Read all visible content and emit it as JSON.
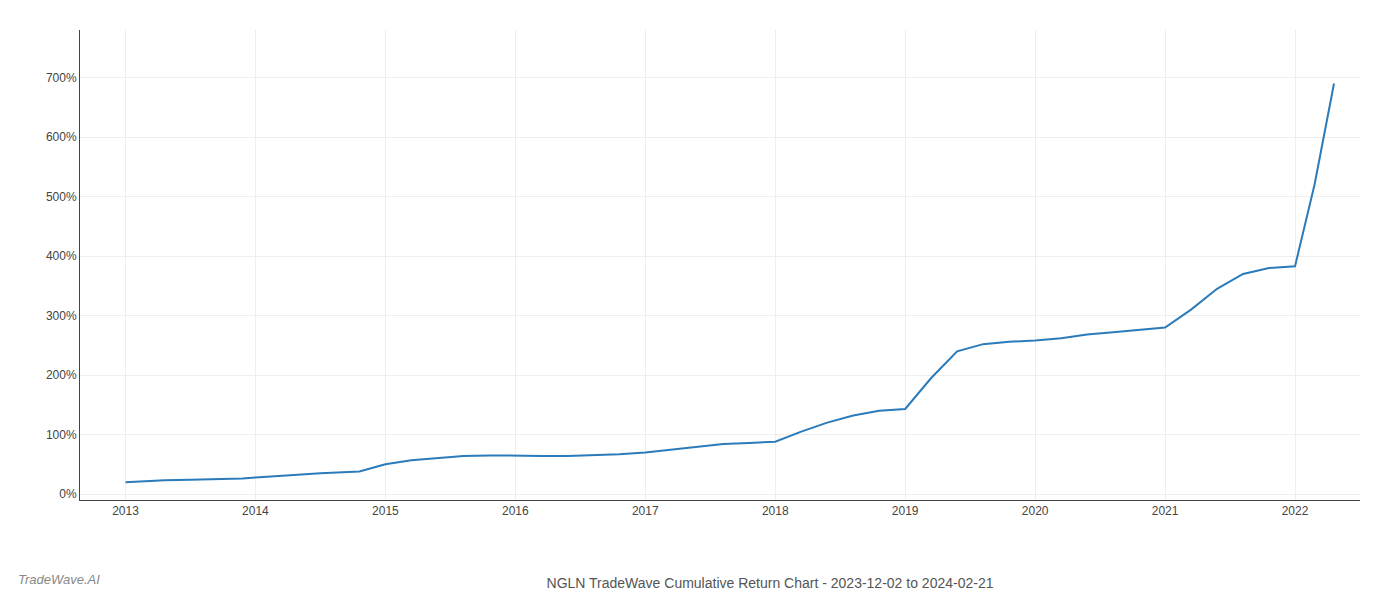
{
  "chart_data": {
    "type": "line",
    "title": "NGLN TradeWave Cumulative Return Chart - 2023-12-02 to 2024-02-21",
    "annotations": [
      {
        "text": "TradeWave.AI"
      }
    ],
    "color": "#2b7bba",
    "grid": true,
    "x": [
      2013.0,
      2013.15,
      2013.3,
      2013.5,
      2013.7,
      2013.9,
      2014.0,
      2014.2,
      2014.5,
      2014.8,
      2015.0,
      2015.2,
      2015.4,
      2015.6,
      2015.8,
      2016.0,
      2016.2,
      2016.4,
      2016.6,
      2016.8,
      2017.0,
      2017.2,
      2017.4,
      2017.6,
      2017.8,
      2018.0,
      2018.2,
      2018.4,
      2018.6,
      2018.8,
      2019.0,
      2019.2,
      2019.4,
      2019.6,
      2019.8,
      2020.0,
      2020.2,
      2020.4,
      2020.6,
      2020.8,
      2021.0,
      2021.2,
      2021.4,
      2021.6,
      2021.8,
      2022.0,
      2022.15,
      2022.3
    ],
    "values": [
      0.2,
      0.22,
      0.23,
      0.24,
      0.25,
      0.26,
      0.28,
      0.31,
      0.35,
      0.38,
      0.5,
      0.57,
      0.61,
      0.64,
      0.65,
      0.64,
      0.64,
      0.64,
      0.65,
      0.67,
      0.7,
      0.75,
      0.8,
      0.84,
      0.86,
      0.88,
      1.05,
      1.2,
      1.32,
      1.4,
      1.43,
      1.95,
      2.4,
      2.52,
      2.56,
      2.58,
      2.62,
      2.68,
      2.72,
      2.76,
      2.8,
      3.1,
      3.45,
      3.7,
      3.8,
      3.83,
      5.2,
      6.9
    ],
    "xlim": [
      2012.65,
      2022.5
    ],
    "xticks": [
      2013,
      2014,
      2015,
      2016,
      2017,
      2018,
      2019,
      2020,
      2021,
      2022
    ],
    "ylim": [
      -0.1,
      7.8
    ],
    "yticks": [
      {
        "value": 0.0,
        "label": "0%"
      },
      {
        "value": 1.0,
        "label": "100%"
      },
      {
        "value": 2.0,
        "label": "200%"
      },
      {
        "value": 3.0,
        "label": "300%"
      },
      {
        "value": 4.0,
        "label": "400%"
      },
      {
        "value": 5.0,
        "label": "500%"
      },
      {
        "value": 6.0,
        "label": "600%"
      },
      {
        "value": 7.0,
        "label": "700%"
      }
    ]
  }
}
